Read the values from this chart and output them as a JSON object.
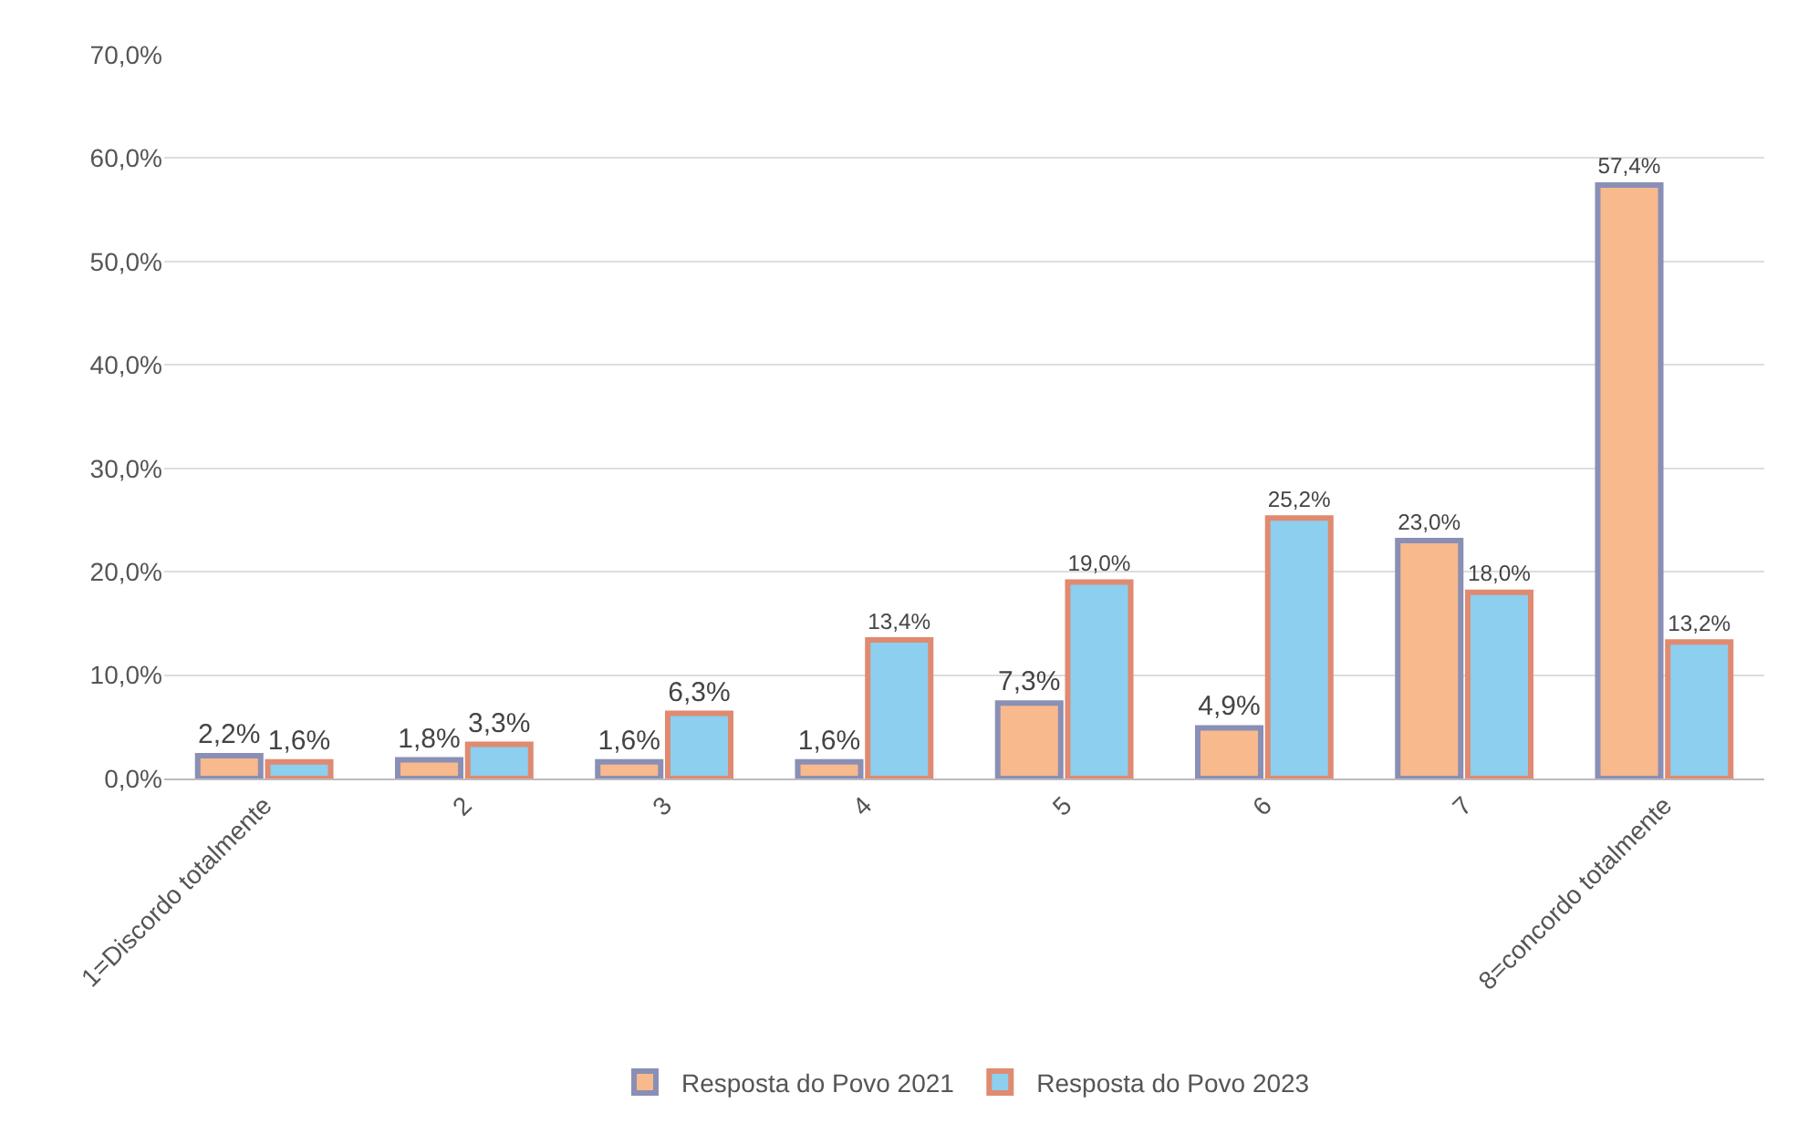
{
  "chart_data": {
    "type": "bar",
    "categories": [
      "1=Discordo totalmente",
      "2",
      "3",
      "4",
      "5",
      "6",
      "7",
      "8=concordo totalmente"
    ],
    "series": [
      {
        "name": "Resposta do Povo 2021",
        "color": "#f8b98c",
        "values": [
          2.2,
          1.8,
          1.6,
          1.6,
          7.3,
          4.9,
          23.0,
          57.4
        ],
        "value_labels": [
          "2,2%",
          "1,8%",
          "1,6%",
          "1,6%",
          "7,3%",
          "4,9%",
          "23,0%",
          "57,4%"
        ]
      },
      {
        "name": "Resposta do Povo 2023",
        "color": "#8ccfee",
        "values": [
          1.6,
          3.3,
          6.3,
          13.4,
          19.0,
          25.2,
          18.0,
          13.2
        ],
        "value_labels": [
          "1,6%",
          "3,3%",
          "6,3%",
          "13,4%",
          "19,0%",
          "25,2%",
          "18,0%",
          "13,2%"
        ]
      }
    ],
    "ylim": [
      0,
      70
    ],
    "yticks": [
      {
        "value": 0,
        "label": "0,0%"
      },
      {
        "value": 10,
        "label": "10,0%"
      },
      {
        "value": 20,
        "label": "20,0%"
      },
      {
        "value": 30,
        "label": "30,0%"
      },
      {
        "value": 40,
        "label": "40,0%"
      },
      {
        "value": 50,
        "label": "50,0%"
      },
      {
        "value": 60,
        "label": "60,0%"
      },
      {
        "value": 70,
        "label": "70,0%"
      }
    ],
    "grid": "y",
    "legend": "bottom"
  }
}
